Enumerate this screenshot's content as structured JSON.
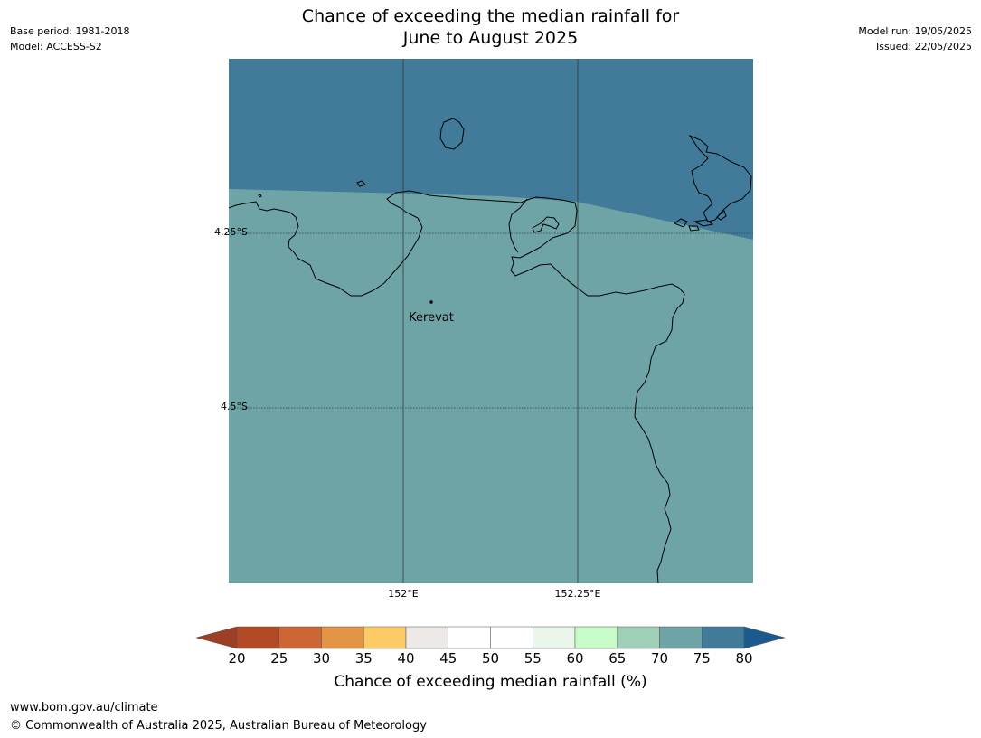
{
  "header": {
    "title_line1": "Chance of exceeding the median rainfall for",
    "title_line2": "June to August 2025",
    "base_period": "Base period: 1981-2018",
    "model": "Model: ACCESS-S2",
    "model_run": "Model run: 19/05/2025",
    "issued": "Issued: 22/05/2025"
  },
  "map": {
    "colors": {
      "band_75_80": "#417b99",
      "band_70_75": "#6fa4a7",
      "coastline": "#000000",
      "grid": "#2b3b3b"
    },
    "lat_labels": [
      "4.25°S",
      "4.5°S"
    ],
    "lon_labels": [
      "152°E",
      "152.25°E"
    ],
    "place": {
      "name": "Kerevat"
    }
  },
  "colorbar": {
    "ticks": [
      "20",
      "25",
      "30",
      "35",
      "40",
      "45",
      "50",
      "55",
      "60",
      "65",
      "70",
      "75",
      "80"
    ],
    "colors": [
      "#b24a25",
      "#cd6535",
      "#e29645",
      "#fdcb66",
      "#ede9e6",
      "#ffffff",
      "#ffffff",
      "#e9f6e9",
      "#c7fbc7",
      "#9fcfb6",
      "#6fa4a7",
      "#417b99"
    ],
    "under_color": "#9c3f25",
    "over_color": "#1b5a8e",
    "label": "Chance of exceeding median rainfall (%)"
  },
  "footer": {
    "url": "www.bom.gov.au/climate",
    "copyright": "© Commonwealth of Australia 2025, Australian Bureau of Meteorology"
  }
}
